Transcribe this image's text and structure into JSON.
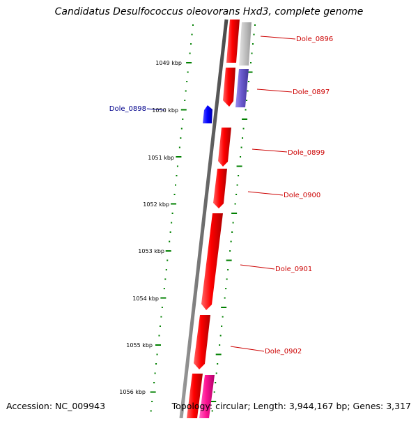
{
  "title": "Candidatus Desulfococcus oleovorans Hxd3, complete genome",
  "footer": {
    "accession": "Accession: NC_009943",
    "topology": "Topology: circular; Length: 3,944,167 bp; Genes: 3,317"
  },
  "ticks": [
    {
      "label": "1049 kbp"
    },
    {
      "label": "1050 kbp"
    },
    {
      "label": "1051 kbp"
    },
    {
      "label": "1052 kbp"
    },
    {
      "label": "1053 kbp"
    },
    {
      "label": "1054 kbp"
    },
    {
      "label": "1055 kbp"
    },
    {
      "label": "1056 kbp"
    }
  ],
  "genes": [
    {
      "label": "Dole_0896",
      "strand": "-",
      "ring": "outer",
      "color": "#b0b0b0"
    },
    {
      "label": "Dole_0897",
      "strand": "-",
      "ring": "outer",
      "color": "#6a5acd"
    },
    {
      "label": "Dole_0898",
      "strand": "+",
      "ring": "inner",
      "color": "#0000ff"
    },
    {
      "label": "Dole_0899",
      "strand": "-",
      "ring": "forward",
      "color": "#ff0000"
    },
    {
      "label": "Dole_0900",
      "strand": "-",
      "ring": "forward",
      "color": "#ff0000"
    },
    {
      "label": "Dole_0901",
      "strand": "-",
      "ring": "forward",
      "color": "#ff0000"
    },
    {
      "label": "Dole_0902",
      "strand": "-",
      "ring": "forward",
      "color": "#ff0000"
    }
  ],
  "colors": {
    "gene_label": "#cc0000",
    "gene_label_inner": "#00008b",
    "tick": "#008000",
    "backbone": "#808080",
    "cds": "#ff0000",
    "cds_pink": "#ff1493"
  }
}
